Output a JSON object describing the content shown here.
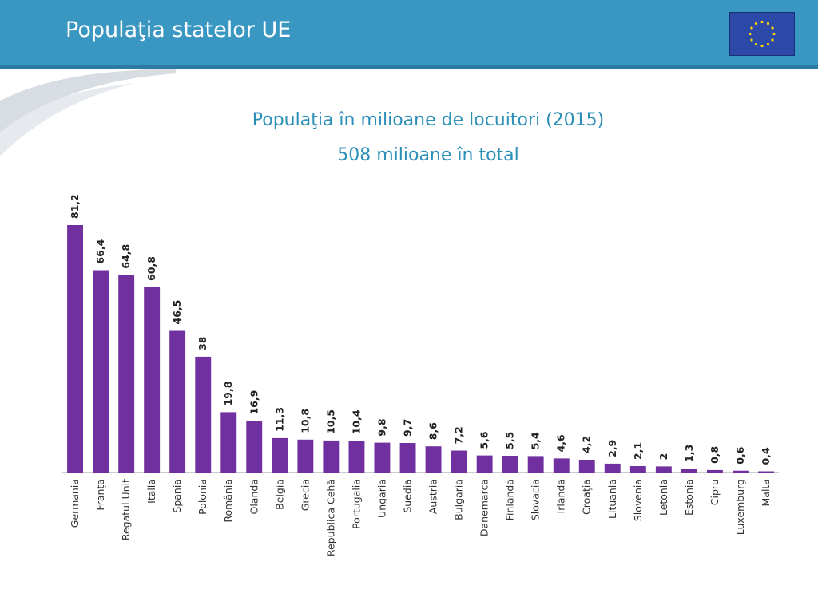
{
  "slide": {
    "title": "Populaţia statelor UE"
  },
  "chart_data": {
    "type": "bar",
    "title": "Populaţia în milioane de locuitori (2015)",
    "subtitle": "508 milioane în total",
    "categories": [
      "Germania",
      "Franța",
      "Regatul Unit",
      "Italia",
      "Spania",
      "Polonia",
      "România",
      "Olanda",
      "Belgia",
      "Grecia",
      "Republica Cehă",
      "Portugalia",
      "Ungaria",
      "Suedia",
      "Austria",
      "Bulgaria",
      "Danemarca",
      "Finlanda",
      "Slovacia",
      "Irlanda",
      "Croația",
      "Lituania",
      "Slovenia",
      "Letonia",
      "Estonia",
      "Cipru",
      "Luxemburg",
      "Malta"
    ],
    "values": [
      81.2,
      66.4,
      64.8,
      60.8,
      46.5,
      38,
      19.8,
      16.9,
      11.3,
      10.8,
      10.5,
      10.4,
      9.8,
      9.7,
      8.6,
      7.2,
      5.6,
      5.5,
      5.4,
      4.6,
      4.2,
      2.9,
      2.1,
      2,
      1.3,
      0.8,
      0.6,
      0.4
    ],
    "value_labels": [
      "81,2",
      "66,4",
      "64,8",
      "60,8",
      "46,5",
      "38",
      "19,8",
      "16,9",
      "11,3",
      "10,8",
      "10,5",
      "10,4",
      "9,8",
      "9,7",
      "8,6",
      "7,2",
      "5,6",
      "5,5",
      "5,4",
      "4,6",
      "4,2",
      "2,9",
      "2,1",
      "2",
      "1,3",
      "0,8",
      "0,6",
      "0,4"
    ],
    "xlabel": "",
    "ylabel": "",
    "ylim": [
      0,
      81.2
    ],
    "grid": false,
    "legend": false,
    "bar_color": "#7030a0"
  }
}
